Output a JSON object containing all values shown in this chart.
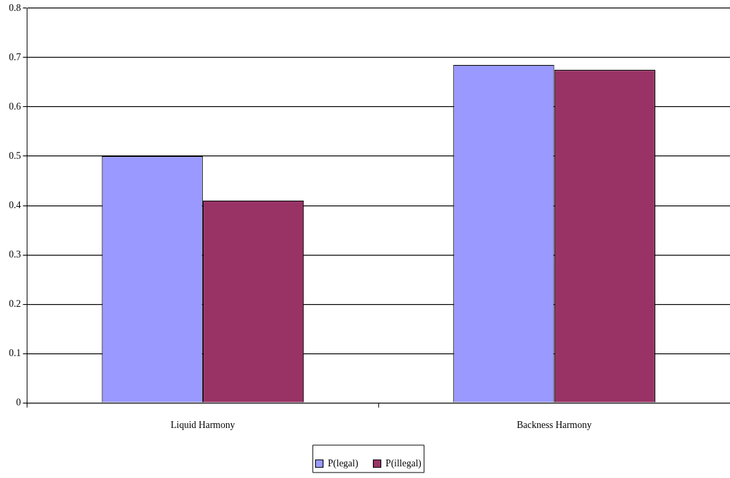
{
  "chart_data": {
    "type": "bar",
    "categories": [
      "Liquid Harmony",
      "Backness Harmony"
    ],
    "series": [
      {
        "name": "P(legal)",
        "color": "#9999ff",
        "values": [
          0.5,
          0.685
        ]
      },
      {
        "name": "P(illegal)",
        "color": "#993366",
        "values": [
          0.41,
          0.675
        ]
      }
    ],
    "ylim": [
      0,
      0.8
    ],
    "yticks": [
      0,
      0.1,
      0.2,
      0.3,
      0.4,
      0.5,
      0.6,
      0.7,
      0.8
    ],
    "grid": "y",
    "legend": "bottom"
  }
}
